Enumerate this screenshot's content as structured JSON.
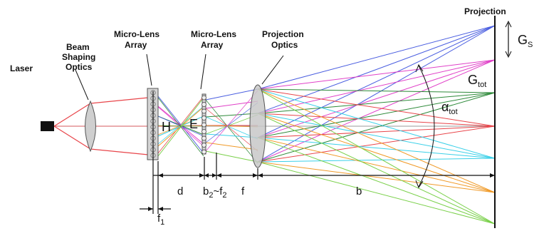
{
  "labels": {
    "laser": "Laser",
    "beam_shaping_1": "Beam",
    "beam_shaping_2": "Shaping",
    "beam_shaping_3": "Optics",
    "mla1_1": "Micro-Lens",
    "mla1_2": "Array",
    "mla2_1": "Micro-Lens",
    "mla2_2": "Array",
    "proj_optics_1": "Projection",
    "proj_optics_2": "Optics",
    "projection": "Projection"
  },
  "symbols": {
    "H": "H",
    "E": "E",
    "G_s_main": "G",
    "G_s_sub": "S",
    "G_tot_main": "G",
    "G_tot_sub": "tot",
    "alpha_main": "α",
    "alpha_sub": "tot"
  },
  "dimensions": {
    "d": "d",
    "b2_main": "b",
    "b2_sub": "2",
    "approx": "~f",
    "f2_sub": "2",
    "f": "f",
    "b": "b",
    "f1_main": "f",
    "f1_sub": "1"
  },
  "colors": {
    "laser_beam": "#e8454a",
    "ray_blue": "#4a5ee0",
    "ray_magenta": "#e040c8",
    "ray_green": "#2e8a3a",
    "ray_red": "#e8454a",
    "ray_cyan": "#3ad0e8",
    "ray_orange": "#f09a28",
    "ray_lime": "#7ad04a",
    "lens_fill": "#c8c8c8"
  }
}
